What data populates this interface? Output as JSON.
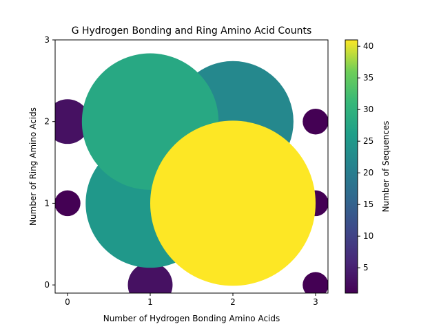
{
  "chart_data": {
    "type": "scatter",
    "title": "G Hydrogen Bonding and Ring Amino Acid Counts",
    "xlabel": "Number of Hydrogen Bonding Amino Acids",
    "ylabel": "Number of Ring Amino Acids",
    "xlim": [
      -0.15,
      3.15
    ],
    "ylim": [
      -0.1,
      3.0
    ],
    "xticks": [
      0,
      1,
      2,
      3
    ],
    "yticks": [
      0,
      1,
      2,
      3
    ],
    "colorbar": {
      "label": "Number of Sequences",
      "min": 1,
      "max": 41,
      "ticks": [
        5,
        10,
        15,
        20,
        25,
        30,
        35,
        40
      ],
      "colormap": "viridis"
    },
    "points": [
      {
        "x": 1,
        "y": 2,
        "count": 28
      },
      {
        "x": 1,
        "y": 1,
        "count": 25
      },
      {
        "x": 2,
        "y": 1,
        "count": 41
      },
      {
        "x": 2,
        "y": 2,
        "count": 22
      },
      {
        "x": 1,
        "y": 0,
        "count": 3
      },
      {
        "x": 0,
        "y": 2,
        "count": 3
      },
      {
        "x": 0,
        "y": 1,
        "count": 1
      },
      {
        "x": 3,
        "y": 2,
        "count": 1
      },
      {
        "x": 3,
        "y": 1,
        "count": 1
      },
      {
        "x": 3,
        "y": 0,
        "count": 1
      }
    ]
  }
}
